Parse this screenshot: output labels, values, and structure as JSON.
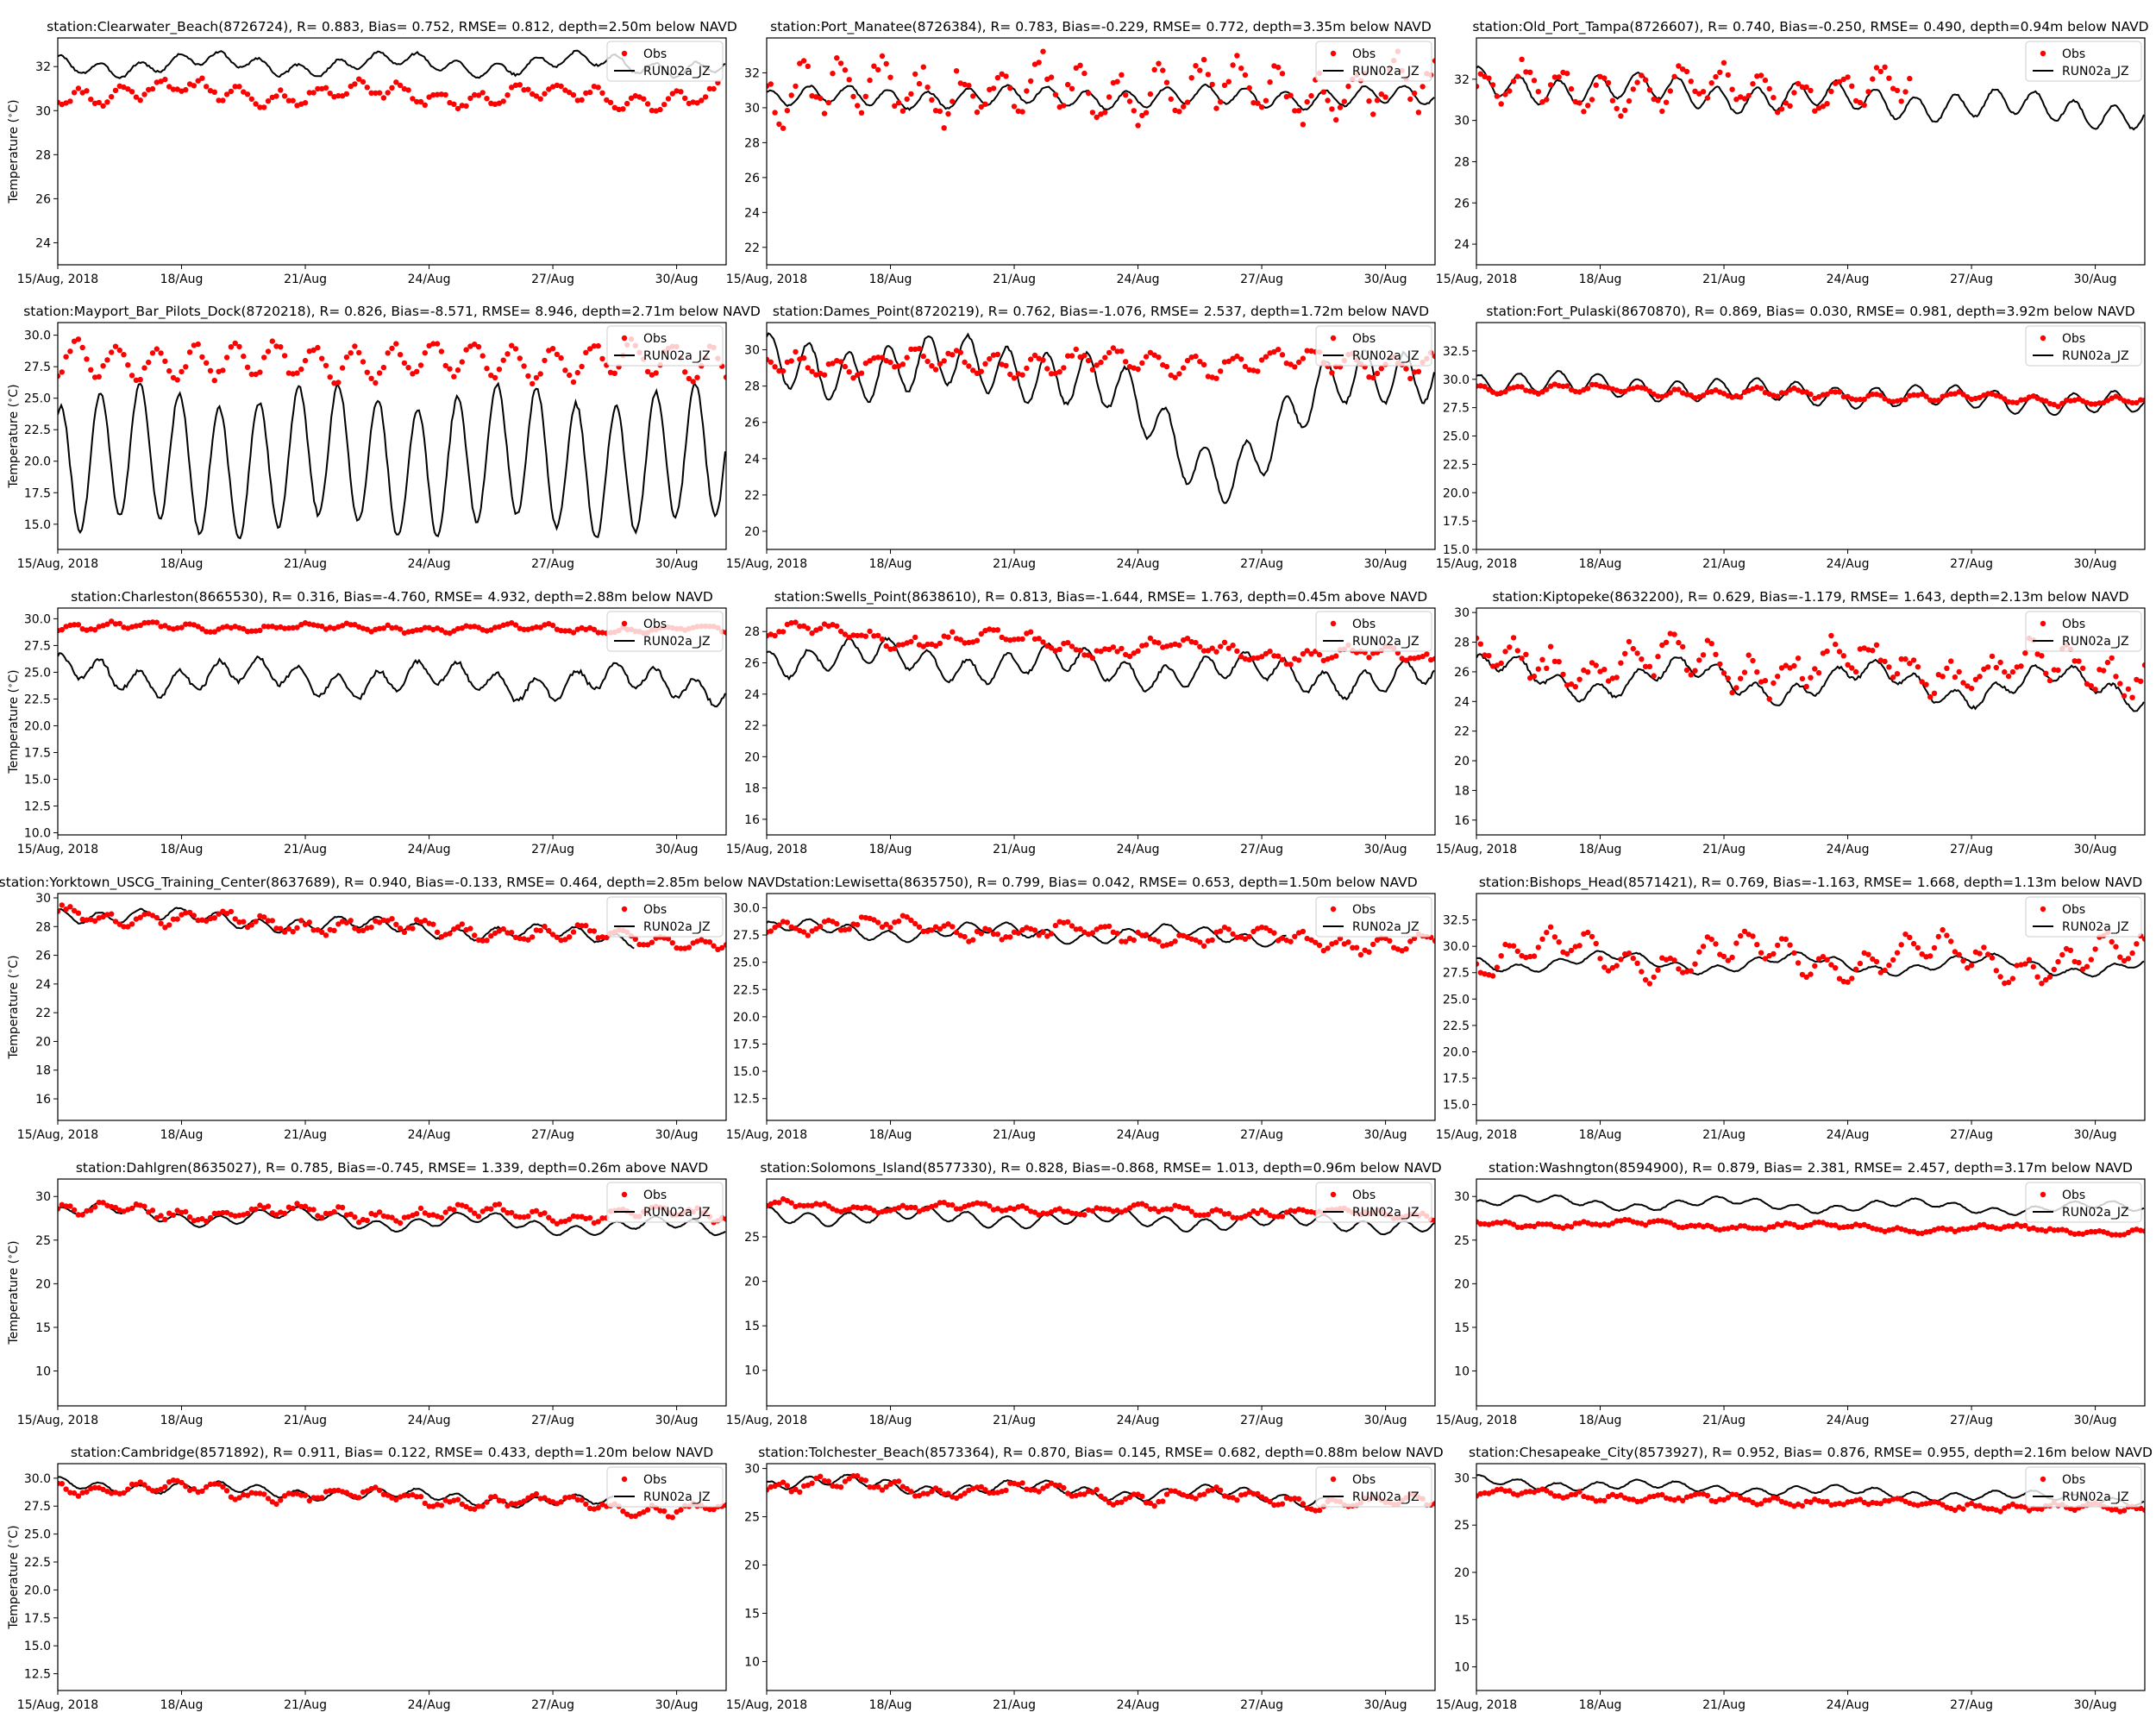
{
  "chart_data": {
    "type": "line",
    "colors": {
      "obs": "#ff0000",
      "model": "#000000"
    },
    "x_tick_labels": [
      "15/Aug, 2018",
      "18/Aug",
      "21/Aug",
      "24/Aug",
      "27/Aug",
      "30/Aug"
    ],
    "x_tick_days": [
      0,
      3,
      6,
      9,
      12,
      15
    ],
    "x_range_days": [
      0,
      16.2
    ],
    "legend": {
      "placement": "top-right",
      "entries": [
        "Obs",
        "RUN02a_JZ"
      ]
    },
    "series_names": [
      "Obs",
      "RUN02a_JZ"
    ],
    "ylabel": "Temperature ($^\\circ$C)",
    "panels": [
      {
        "title": "station:Clearwater_Beach(8726724), R= 0.883, Bias= 0.752, RMSE= 0.812, depth=2.50m below NAVD",
        "ylim": [
          23,
          33.3
        ],
        "yticks": [
          24,
          26,
          28,
          30,
          32
        ],
        "ytick_labels": [
          "24",
          "26",
          "28",
          "30",
          "32"
        ],
        "obs": {
          "mean": 30.9,
          "trend": -0.02,
          "diurnal": 0.35,
          "synoptic": 0.3,
          "noise": 0.15,
          "end": 16.0
        },
        "model": {
          "mean": 32.1,
          "trend": 0.0,
          "diurnal": 0.3,
          "synoptic": 0.3,
          "noise": 0.05,
          "end": 16.2
        }
      },
      {
        "title": "station:Port_Manatee(8726384), R= 0.783, Bias=-0.229, RMSE= 0.772, depth=3.35m below NAVD",
        "ylim": [
          21,
          34
        ],
        "yticks": [
          22,
          24,
          26,
          28,
          30,
          32
        ],
        "ytick_labels": [
          "22",
          "24",
          "26",
          "28",
          "30",
          "32"
        ],
        "obs": {
          "mean": 31.0,
          "trend": 0.0,
          "diurnal": 1.3,
          "synoptic": 0.5,
          "noise": 0.6,
          "end": 16.2
        },
        "model": {
          "mean": 30.6,
          "trend": 0.0,
          "diurnal": 0.5,
          "synoptic": 0.2,
          "noise": 0.05,
          "end": 16.2
        }
      },
      {
        "title": "station:Old_Port_Tampa(8726607), R= 0.740, Bias=-0.250, RMSE= 0.490, depth=0.94m below NAVD",
        "ylim": [
          23,
          34
        ],
        "yticks": [
          24,
          26,
          28,
          30,
          32
        ],
        "ytick_labels": [
          "24",
          "26",
          "28",
          "30",
          "32"
        ],
        "obs": {
          "mean": 31.5,
          "trend": 0.0,
          "diurnal": 0.8,
          "synoptic": 0.4,
          "noise": 0.3,
          "end": 10.5
        },
        "model": {
          "mean": 31.8,
          "trend": -0.09,
          "diurnal": 0.6,
          "synoptic": 0.3,
          "noise": 0.05,
          "end": 16.2
        }
      },
      {
        "title": "station:Mayport_Bar_Pilots_Dock(8720218), R= 0.826, Bias=-8.571, RMSE= 8.946, depth=2.71m below NAVD",
        "ylim": [
          13,
          31
        ],
        "yticks": [
          15.0,
          17.5,
          20.0,
          22.5,
          25.0,
          27.5,
          30.0
        ],
        "ytick_labels": [
          "15.0",
          "17.5",
          "20.0",
          "22.5",
          "25.0",
          "27.5",
          "30.0"
        ],
        "obs": {
          "mean": 27.9,
          "trend": 0.0,
          "diurnal": 1.3,
          "synoptic": 0.3,
          "noise": 0.3,
          "end": 16.2
        },
        "model": {
          "mean": 20.0,
          "trend": 0.0,
          "diurnal": 5.2,
          "synoptic": 1.0,
          "noise": 0.2,
          "end": 16.2
        }
      },
      {
        "title": "station:Dames_Point(8720219), R= 0.762, Bias=-1.076, RMSE= 2.537, depth=1.72m below NAVD",
        "ylim": [
          19,
          31.5
        ],
        "yticks": [
          20,
          22,
          24,
          26,
          28,
          30
        ],
        "ytick_labels": [
          "20",
          "22",
          "24",
          "26",
          "28",
          "30"
        ],
        "obs": {
          "mean": 29.3,
          "trend": 0.0,
          "diurnal": 0.5,
          "synoptic": 0.3,
          "noise": 0.2,
          "end": 16.2
        },
        "model": {
          "mean": 29.0,
          "trend": 0.0,
          "diurnal": 1.4,
          "synoptic": 0.5,
          "noise": 0.1,
          "dip_center": 11.0,
          "dip_depth": 5.5,
          "dip_width": 2.2,
          "end": 16.2
        }
      },
      {
        "title": "station:Fort_Pulaski(8670870), R= 0.869, Bias= 0.030, RMSE= 0.981, depth=3.92m below NAVD",
        "ylim": [
          15,
          35
        ],
        "yticks": [
          15.0,
          17.5,
          20.0,
          22.5,
          25.0,
          27.5,
          30.0,
          32.5
        ],
        "ytick_labels": [
          "15.0",
          "17.5",
          "20.0",
          "22.5",
          "25.0",
          "27.5",
          "30.0",
          "32.5"
        ],
        "obs": {
          "mean": 29.3,
          "trend": -0.08,
          "diurnal": 0.3,
          "synoptic": 0.2,
          "noise": 0.15,
          "end": 16.2
        },
        "model": {
          "mean": 29.8,
          "trend": -0.13,
          "diurnal": 0.9,
          "synoptic": 0.3,
          "noise": 0.05,
          "end": 16.2
        }
      },
      {
        "title": "station:Charleston(8665530), R= 0.316, Bias=-4.760, RMSE= 4.932, depth=2.88m below NAVD",
        "ylim": [
          9.8,
          31
        ],
        "yticks": [
          10.0,
          12.5,
          15.0,
          17.5,
          20.0,
          22.5,
          25.0,
          27.5,
          30.0
        ],
        "ytick_labels": [
          "10.0",
          "12.5",
          "15.0",
          "17.5",
          "20.0",
          "22.5",
          "25.0",
          "27.5",
          "30.0"
        ],
        "obs": {
          "mean": 29.3,
          "trend": -0.02,
          "diurnal": 0.25,
          "synoptic": 0.2,
          "noise": 0.15,
          "end": 16.2
        },
        "model": {
          "mean": 24.8,
          "trend": -0.06,
          "diurnal": 1.1,
          "synoptic": 0.8,
          "noise": 0.2,
          "end": 16.2
        }
      },
      {
        "title": "station:Swells_Point(8638610), R= 0.813, Bias=-1.644, RMSE= 1.763, depth=0.45m above NAVD",
        "ylim": [
          15,
          29.5
        ],
        "yticks": [
          16,
          18,
          20,
          22,
          24,
          26,
          28
        ],
        "ytick_labels": [
          "16",
          "18",
          "20",
          "22",
          "24",
          "26",
          "28"
        ],
        "obs": {
          "mean": 28.0,
          "trend": -0.11,
          "diurnal": 0.3,
          "synoptic": 0.4,
          "noise": 0.2,
          "end": 16.2
        },
        "model": {
          "mean": 26.5,
          "trend": -0.1,
          "diurnal": 0.8,
          "synoptic": 0.6,
          "noise": 0.1,
          "end": 16.2
        }
      },
      {
        "title": "station:Kiptopeke(8632200), R= 0.629, Bias=-1.179, RMSE= 1.643, depth=2.13m below NAVD",
        "ylim": [
          15,
          30.3
        ],
        "yticks": [
          16,
          18,
          20,
          22,
          24,
          26,
          28,
          30
        ],
        "ytick_labels": [
          "16",
          "18",
          "20",
          "22",
          "24",
          "26",
          "28",
          "30"
        ],
        "obs": {
          "mean": 26.8,
          "trend": -0.05,
          "diurnal": 1.0,
          "synoptic": 0.8,
          "noise": 0.6,
          "end": 16.2
        },
        "model": {
          "mean": 25.7,
          "trend": -0.05,
          "diurnal": 0.6,
          "synoptic": 1.0,
          "noise": 0.1,
          "end": 16.2
        }
      },
      {
        "title": "station:Yorktown_USCG_Training_Center(8637689), R= 0.940, Bias=-0.133, RMSE= 0.464, depth=2.85m below NAVD",
        "ylim": [
          14.5,
          30.3
        ],
        "yticks": [
          16,
          18,
          20,
          22,
          24,
          26,
          28,
          30
        ],
        "ytick_labels": [
          "16",
          "18",
          "20",
          "22",
          "24",
          "26",
          "28",
          "30"
        ],
        "obs": {
          "mean": 28.9,
          "trend": -0.12,
          "diurnal": 0.4,
          "synoptic": 0.3,
          "noise": 0.2,
          "end": 16.2
        },
        "model": {
          "mean": 29.0,
          "trend": -0.13,
          "diurnal": 0.4,
          "synoptic": 0.3,
          "noise": 0.05,
          "end": 14.0
        }
      },
      {
        "title": "station:Lewisetta(8635750), R= 0.799, Bias= 0.042, RMSE= 0.653, depth=1.50m below NAVD",
        "ylim": [
          10.5,
          31.3
        ],
        "yticks": [
          12.5,
          15.0,
          17.5,
          20.0,
          22.5,
          25.0,
          27.5,
          30.0
        ],
        "ytick_labels": [
          "12.5",
          "15.0",
          "17.5",
          "20.0",
          "22.5",
          "25.0",
          "27.5",
          "30.0"
        ],
        "obs": {
          "mean": 28.6,
          "trend": -0.12,
          "diurnal": 0.5,
          "synoptic": 0.5,
          "noise": 0.25,
          "end": 16.2
        },
        "model": {
          "mean": 28.0,
          "trend": -0.05,
          "diurnal": 0.5,
          "synoptic": 0.5,
          "noise": 0.05,
          "end": 12.6
        }
      },
      {
        "title": "station:Bishops_Head(8571421), R= 0.769, Bias=-1.163, RMSE= 1.668, depth=1.13m below NAVD",
        "ylim": [
          13.5,
          35
        ],
        "yticks": [
          15.0,
          17.5,
          20.0,
          22.5,
          25.0,
          27.5,
          30.0,
          32.5
        ],
        "ytick_labels": [
          "15.0",
          "17.5",
          "20.0",
          "22.5",
          "25.0",
          "27.5",
          "30.0",
          "32.5"
        ],
        "obs": {
          "mean": 29.2,
          "trend": -0.03,
          "diurnal": 1.2,
          "synoptic": 1.3,
          "noise": 0.4,
          "end": 16.2
        },
        "model": {
          "mean": 28.6,
          "trend": -0.03,
          "diurnal": 0.4,
          "synoptic": 0.7,
          "noise": 0.05,
          "end": 16.2
        }
      },
      {
        "title": "station:Dahlgren(8635027), R= 0.785, Bias=-0.745, RMSE= 1.339, depth=0.26m above NAVD",
        "ylim": [
          6,
          32
        ],
        "yticks": [
          10,
          15,
          20,
          25,
          30
        ],
        "ytick_labels": [
          "10",
          "15",
          "20",
          "25",
          "30"
        ],
        "obs": {
          "mean": 28.3,
          "trend": -0.03,
          "diurnal": 0.5,
          "synoptic": 0.5,
          "noise": 0.3,
          "end": 16.2
        },
        "model": {
          "mean": 28.2,
          "trend": -0.12,
          "diurnal": 0.6,
          "synoptic": 0.7,
          "noise": 0.05,
          "end": 16.2
        }
      },
      {
        "title": "station:Solomons_Island(8577330), R= 0.828, Bias=-0.868, RMSE= 1.013, depth=0.96m below NAVD",
        "ylim": [
          6,
          31.5
        ],
        "yticks": [
          10,
          15,
          20,
          25
        ],
        "ytick_labels": [
          "10",
          "15",
          "20",
          "25"
        ],
        "obs": {
          "mean": 28.5,
          "trend": -0.06,
          "diurnal": 0.3,
          "synoptic": 0.3,
          "noise": 0.2,
          "end": 16.2
        },
        "model": {
          "mean": 27.5,
          "trend": -0.07,
          "diurnal": 0.7,
          "synoptic": 0.5,
          "noise": 0.05,
          "end": 16.2
        }
      },
      {
        "title": "station:Washngton(8594900), R= 0.879, Bias= 2.381, RMSE= 2.457, depth=3.17m below NAVD",
        "ylim": [
          6,
          32
        ],
        "yticks": [
          10,
          15,
          20,
          25,
          30
        ],
        "ytick_labels": [
          "10",
          "15",
          "20",
          "25",
          "30"
        ],
        "obs": {
          "mean": 27.0,
          "trend": -0.06,
          "diurnal": 0.2,
          "synoptic": 0.3,
          "noise": 0.15,
          "end": 16.2
        },
        "model": {
          "mean": 29.4,
          "trend": -0.05,
          "diurnal": 0.4,
          "synoptic": 0.5,
          "noise": 0.05,
          "end": 16.2
        }
      },
      {
        "title": "station:Cambridge(8571892), R= 0.911, Bias= 0.122, RMSE= 0.433, depth=1.20m below NAVD",
        "ylim": [
          11,
          31.3
        ],
        "yticks": [
          12.5,
          15.0,
          17.5,
          20.0,
          22.5,
          25.0,
          27.5,
          30.0
        ],
        "ytick_labels": [
          "12.5",
          "15.0",
          "17.5",
          "20.0",
          "22.5",
          "25.0",
          "27.5",
          "30.0"
        ],
        "obs": {
          "mean": 29.4,
          "trend": -0.14,
          "diurnal": 0.4,
          "synoptic": 0.4,
          "noise": 0.2,
          "end": 16.2
        },
        "model": {
          "mean": 29.5,
          "trend": -0.13,
          "diurnal": 0.4,
          "synoptic": 0.3,
          "noise": 0.05,
          "end": 13.5
        }
      },
      {
        "title": "station:Tolchester_Beach(8573364), R= 0.870, Bias= 0.145, RMSE= 0.682, depth=0.88m below NAVD",
        "ylim": [
          7,
          30.5
        ],
        "yticks": [
          10,
          15,
          20,
          25,
          30
        ],
        "ytick_labels": [
          "10",
          "15",
          "20",
          "25",
          "30"
        ],
        "obs": {
          "mean": 28.4,
          "trend": -0.13,
          "diurnal": 0.5,
          "synoptic": 0.5,
          "noise": 0.25,
          "end": 16.2
        },
        "model": {
          "mean": 28.6,
          "trend": -0.12,
          "diurnal": 0.5,
          "synoptic": 0.5,
          "noise": 0.05,
          "end": 13.8
        }
      },
      {
        "title": "station:Chesapeake_City(8573927), R= 0.952, Bias= 0.876, RMSE= 0.955, depth=2.16m below NAVD",
        "ylim": [
          7.5,
          31.5
        ],
        "yticks": [
          10,
          15,
          20,
          25,
          30
        ],
        "ytick_labels": [
          "10",
          "15",
          "20",
          "25",
          "30"
        ],
        "obs": {
          "mean": 28.4,
          "trend": -0.11,
          "diurnal": 0.3,
          "synoptic": 0.2,
          "noise": 0.2,
          "end": 16.2
        },
        "model": {
          "mean": 29.6,
          "trend": -0.12,
          "diurnal": 0.4,
          "synoptic": 0.3,
          "noise": 0.05,
          "end": 16.2
        }
      }
    ]
  }
}
